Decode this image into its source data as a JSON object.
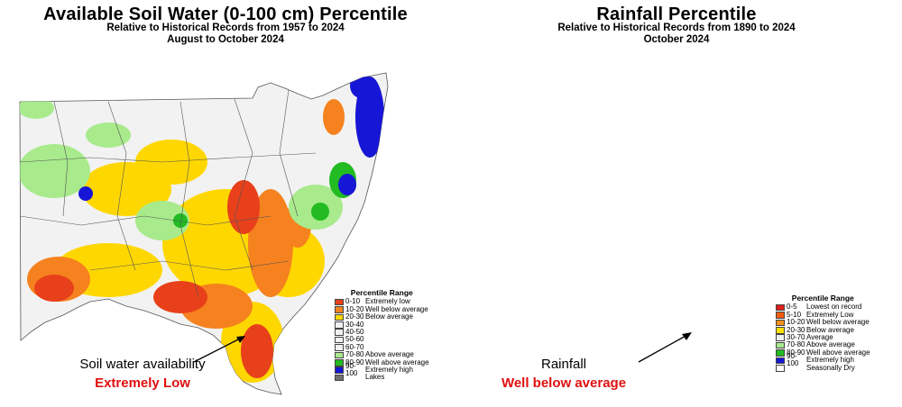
{
  "left_map": {
    "title": "Available Soil Water (0-100 cm) Percentile",
    "subtitle1": "Relative to Historical Records from 1957 to 2024",
    "subtitle2": "August to October 2024",
    "legend": {
      "title": "Percentile Range",
      "items": [
        {
          "range": "0-10",
          "label": "Extremely low",
          "color": "#e8401a"
        },
        {
          "range": "10-20",
          "label": "Well below average",
          "color": "#f5821f"
        },
        {
          "range": "20-30",
          "label": "Below average",
          "color": "#ffd700"
        },
        {
          "range": "30-40",
          "label": "",
          "color": "#f0f0f0"
        },
        {
          "range": "40-50",
          "label": "",
          "color": "#f0f0f0"
        },
        {
          "range": "50-60",
          "label": "",
          "color": "#f0f0f0"
        },
        {
          "range": "60-70",
          "label": "",
          "color": "#f0f0f0"
        },
        {
          "range": "70-80",
          "label": "Above average",
          "color": "#a8ea8c"
        },
        {
          "range": "80-90",
          "label": "Well above average",
          "color": "#22bb22"
        },
        {
          "range": "90-100",
          "label": "Extremely high",
          "color": "#1616d6"
        },
        {
          "range": "",
          "label": "Lakes",
          "color": "#707070"
        }
      ]
    },
    "annotation": {
      "line1": "Soil water availability",
      "line2": "Extremely Low"
    }
  },
  "right_map": {
    "title": "Rainfall Percentile",
    "subtitle1": "Relative to Historical Records from 1890 to 2024",
    "subtitle2": "October 2024",
    "legend": {
      "title": "Percentile Range",
      "items": [
        {
          "range": "0-5",
          "label": "Lowest on record",
          "color": "#e0201a"
        },
        {
          "range": "5-10",
          "label": "Extremely Low",
          "color": "#f05a10"
        },
        {
          "range": "10-20",
          "label": "Well below average",
          "color": "#f5921f"
        },
        {
          "range": "20-30",
          "label": "Below average",
          "color": "#ffe000"
        },
        {
          "range": "30-70",
          "label": "Average",
          "color": "#f0f0f0"
        },
        {
          "range": "70-80",
          "label": "Above average",
          "color": "#a8ea8c"
        },
        {
          "range": "80-90",
          "label": "Well above average",
          "color": "#22bb22"
        },
        {
          "range": "90-100",
          "label": "Extremely high",
          "color": "#1616d6"
        },
        {
          "range": "",
          "label": "Seasonally Dry",
          "color": "#ffffff"
        }
      ]
    },
    "annotation": {
      "line1": "Rainfall",
      "line2": "Well below average"
    }
  }
}
